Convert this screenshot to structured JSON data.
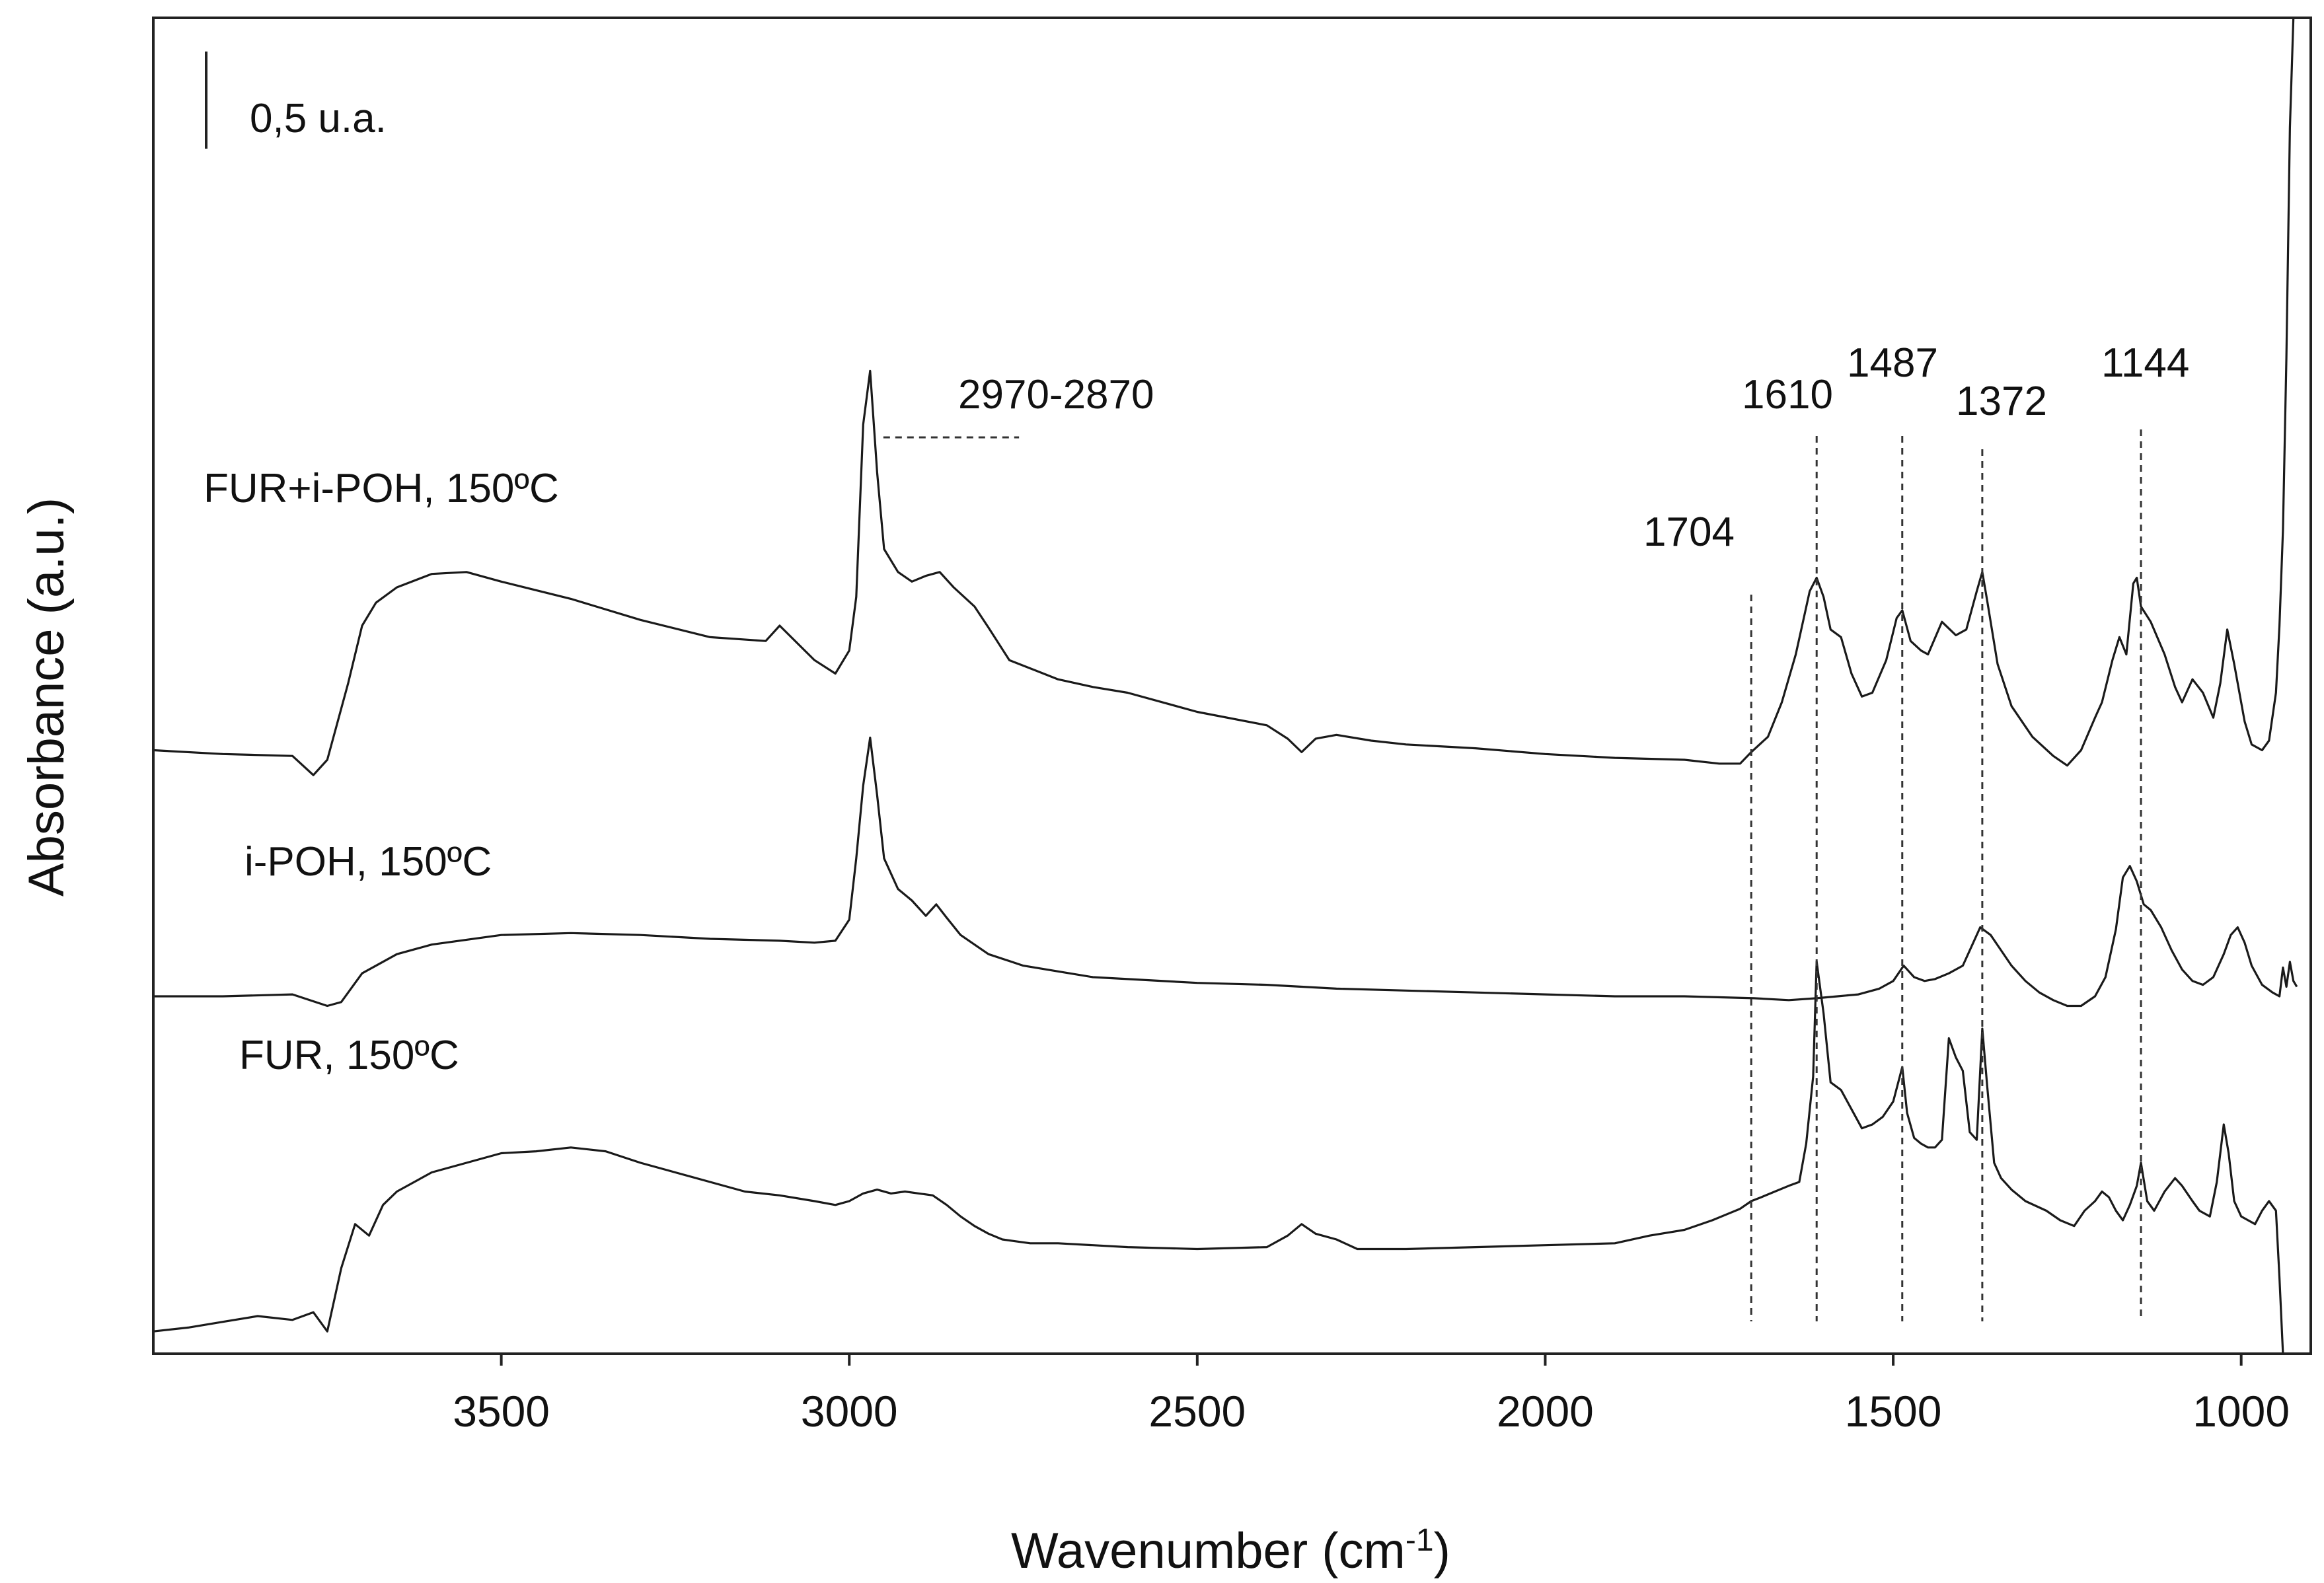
{
  "chart_data": {
    "type": "line",
    "xlabel": "Wavenumber (cm",
    "xlabel_sup": "-1",
    "xlabel_close": ")",
    "ylabel": "Absorbance (a.u.)",
    "xlim": [
      4000,
      900
    ],
    "x_reversed": true,
    "x_ticks": [
      3500,
      3000,
      2500,
      2000,
      1500,
      1000
    ],
    "grid": false,
    "scale_bar": {
      "label": "0,5 u.a.",
      "value": 0.5
    },
    "reference_lines": [
      {
        "x": 1704,
        "label": "1704"
      },
      {
        "x": 1610,
        "label": "1610"
      },
      {
        "x": 1487,
        "label": "1487"
      },
      {
        "x": 1372,
        "label": "1372"
      },
      {
        "x": 1144,
        "label": "1144"
      }
    ],
    "range_annotation": {
      "label": "2970-2870",
      "x_start": 2970,
      "x_end": 2870
    },
    "series": [
      {
        "name": "FUR+i-POH, 150ºC",
        "x": [
          4000,
          3900,
          3800,
          3770,
          3750,
          3720,
          3700,
          3680,
          3650,
          3600,
          3550,
          3500,
          3400,
          3300,
          3200,
          3120,
          3100,
          3050,
          3020,
          3000,
          2990,
          2980,
          2970,
          2960,
          2950,
          2930,
          2910,
          2890,
          2870,
          2850,
          2820,
          2800,
          2770,
          2700,
          2650,
          2600,
          2500,
          2400,
          2370,
          2350,
          2330,
          2300,
          2250,
          2200,
          2100,
          2000,
          1900,
          1800,
          1750,
          1720,
          1704,
          1680,
          1660,
          1640,
          1620,
          1610,
          1600,
          1590,
          1575,
          1560,
          1545,
          1530,
          1510,
          1495,
          1487,
          1475,
          1460,
          1450,
          1430,
          1410,
          1395,
          1380,
          1372,
          1365,
          1350,
          1330,
          1300,
          1270,
          1250,
          1230,
          1210,
          1200,
          1185,
          1175,
          1165,
          1155,
          1150,
          1144,
          1130,
          1110,
          1095,
          1085,
          1070,
          1055,
          1040,
          1030,
          1020,
          1010,
          995,
          985,
          970,
          960,
          950,
          945,
          940,
          935,
          930,
          925,
          920
        ],
        "y": [
          0.05,
          0.03,
          0.02,
          -0.08,
          0.0,
          0.4,
          0.7,
          0.82,
          0.9,
          0.97,
          0.98,
          0.93,
          0.84,
          0.73,
          0.64,
          0.62,
          0.7,
          0.52,
          0.45,
          0.57,
          0.85,
          1.75,
          2.03,
          1.5,
          1.1,
          0.98,
          0.93,
          0.96,
          0.98,
          0.9,
          0.8,
          0.69,
          0.52,
          0.42,
          0.38,
          0.35,
          0.25,
          0.18,
          0.11,
          0.04,
          0.11,
          0.13,
          0.1,
          0.08,
          0.06,
          0.03,
          0.01,
          0.0,
          -0.02,
          -0.02,
          0.04,
          0.12,
          0.3,
          0.55,
          0.88,
          0.95,
          0.85,
          0.68,
          0.64,
          0.45,
          0.33,
          0.35,
          0.52,
          0.74,
          0.78,
          0.62,
          0.57,
          0.55,
          0.72,
          0.65,
          0.68,
          0.88,
          0.98,
          0.83,
          0.5,
          0.28,
          0.12,
          0.02,
          -0.03,
          0.05,
          0.22,
          0.3,
          0.52,
          0.64,
          0.55,
          0.92,
          0.95,
          0.8,
          0.72,
          0.55,
          0.38,
          0.3,
          0.42,
          0.35,
          0.22,
          0.4,
          0.68,
          0.5,
          0.2,
          0.08,
          0.05,
          0.1,
          0.35,
          0.7,
          1.2,
          2.1,
          3.3,
          4.1,
          4.8
        ]
      },
      {
        "name": "i-POH, 150ºC",
        "x": [
          4000,
          3900,
          3800,
          3750,
          3730,
          3700,
          3650,
          3600,
          3500,
          3400,
          3300,
          3200,
          3100,
          3050,
          3020,
          3000,
          2990,
          2980,
          2970,
          2960,
          2950,
          2930,
          2910,
          2890,
          2875,
          2860,
          2840,
          2800,
          2750,
          2700,
          2650,
          2600,
          2500,
          2400,
          2300,
          2200,
          2100,
          2000,
          1900,
          1800,
          1700,
          1650,
          1610,
          1580,
          1550,
          1520,
          1500,
          1485,
          1470,
          1455,
          1440,
          1420,
          1400,
          1385,
          1375,
          1360,
          1345,
          1330,
          1310,
          1290,
          1270,
          1250,
          1230,
          1210,
          1195,
          1180,
          1170,
          1160,
          1150,
          1140,
          1130,
          1115,
          1100,
          1085,
          1070,
          1055,
          1040,
          1025,
          1015,
          1005,
          995,
          985,
          970,
          955,
          945,
          940,
          935,
          930,
          925,
          920
        ],
        "y": [
          0.0,
          0.0,
          0.01,
          -0.05,
          -0.03,
          0.12,
          0.22,
          0.27,
          0.32,
          0.33,
          0.32,
          0.3,
          0.29,
          0.28,
          0.29,
          0.4,
          0.72,
          1.1,
          1.35,
          1.05,
          0.72,
          0.56,
          0.5,
          0.42,
          0.48,
          0.41,
          0.32,
          0.22,
          0.16,
          0.13,
          0.1,
          0.09,
          0.07,
          0.06,
          0.04,
          0.03,
          0.02,
          0.01,
          0.0,
          0.0,
          -0.01,
          -0.02,
          -0.01,
          0.0,
          0.01,
          0.04,
          0.08,
          0.16,
          0.1,
          0.08,
          0.09,
          0.12,
          0.16,
          0.28,
          0.36,
          0.32,
          0.24,
          0.16,
          0.08,
          0.02,
          -0.02,
          -0.05,
          -0.05,
          0.0,
          0.1,
          0.35,
          0.62,
          0.68,
          0.6,
          0.48,
          0.45,
          0.36,
          0.24,
          0.14,
          0.08,
          0.06,
          0.1,
          0.22,
          0.32,
          0.36,
          0.28,
          0.16,
          0.06,
          0.02,
          0.0,
          0.15,
          0.05,
          0.18,
          0.08,
          0.05
        ]
      },
      {
        "name": "FUR, 150ºC",
        "x": [
          4000,
          3950,
          3900,
          3850,
          3800,
          3770,
          3750,
          3730,
          3710,
          3690,
          3670,
          3650,
          3600,
          3550,
          3500,
          3450,
          3400,
          3350,
          3300,
          3250,
          3200,
          3150,
          3100,
          3050,
          3020,
          3000,
          2980,
          2960,
          2940,
          2920,
          2900,
          2880,
          2860,
          2840,
          2820,
          2800,
          2780,
          2760,
          2740,
          2700,
          2650,
          2600,
          2500,
          2400,
          2370,
          2350,
          2330,
          2300,
          2270,
          2250,
          2200,
          2100,
          2000,
          1900,
          1850,
          1800,
          1760,
          1740,
          1720,
          1704,
          1690,
          1670,
          1650,
          1635,
          1625,
          1615,
          1610,
          1600,
          1590,
          1575,
          1560,
          1545,
          1530,
          1515,
          1500,
          1487,
          1480,
          1470,
          1460,
          1450,
          1440,
          1430,
          1420,
          1410,
          1400,
          1390,
          1380,
          1372,
          1365,
          1355,
          1345,
          1330,
          1310,
          1280,
          1260,
          1240,
          1225,
          1210,
          1200,
          1190,
          1180,
          1170,
          1160,
          1150,
          1144,
          1135,
          1125,
          1110,
          1095,
          1085,
          1070,
          1060,
          1045,
          1035,
          1025,
          1018,
          1010,
          1000,
          990,
          980,
          970,
          960,
          950,
          945,
          940,
          935,
          930,
          925
        ],
        "y": [
          -0.38,
          -0.36,
          -0.33,
          -0.3,
          -0.32,
          -0.28,
          -0.38,
          -0.05,
          0.18,
          0.12,
          0.28,
          0.35,
          0.45,
          0.5,
          0.55,
          0.56,
          0.58,
          0.56,
          0.5,
          0.45,
          0.4,
          0.35,
          0.33,
          0.3,
          0.28,
          0.3,
          0.34,
          0.36,
          0.34,
          0.35,
          0.34,
          0.33,
          0.28,
          0.22,
          0.17,
          0.13,
          0.1,
          0.09,
          0.08,
          0.08,
          0.07,
          0.06,
          0.05,
          0.06,
          0.12,
          0.18,
          0.13,
          0.1,
          0.05,
          0.05,
          0.05,
          0.06,
          0.07,
          0.08,
          0.12,
          0.15,
          0.2,
          0.23,
          0.26,
          0.3,
          0.32,
          0.35,
          0.38,
          0.4,
          0.6,
          0.95,
          1.55,
          1.28,
          0.92,
          0.88,
          0.78,
          0.68,
          0.7,
          0.74,
          0.82,
          1.0,
          0.76,
          0.63,
          0.6,
          0.58,
          0.58,
          0.62,
          1.15,
          1.05,
          0.98,
          0.66,
          0.62,
          1.2,
          0.9,
          0.5,
          0.42,
          0.36,
          0.3,
          0.25,
          0.2,
          0.17,
          0.25,
          0.3,
          0.35,
          0.32,
          0.25,
          0.2,
          0.28,
          0.38,
          0.5,
          0.3,
          0.25,
          0.35,
          0.42,
          0.38,
          0.3,
          0.25,
          0.22,
          0.4,
          0.7,
          0.55,
          0.3,
          0.22,
          0.2,
          0.18,
          0.25,
          0.3,
          0.25,
          -0.1,
          -0.7,
          -1.4,
          -2.2,
          -2.8
        ]
      }
    ]
  }
}
